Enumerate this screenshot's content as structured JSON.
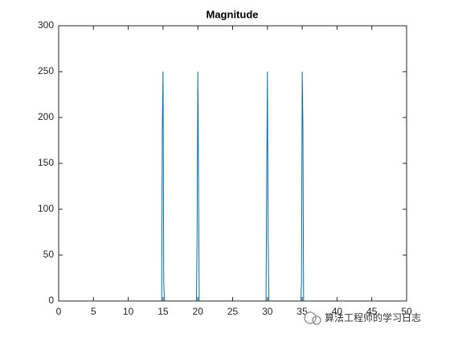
{
  "chart_data": {
    "type": "line",
    "title": "Magnitude",
    "x": [
      0,
      14.8,
      14.9,
      15,
      15.1,
      15.2,
      19.8,
      19.9,
      20,
      20.1,
      20.2,
      29.8,
      29.9,
      30,
      30.1,
      30.2,
      34.8,
      34.9,
      35,
      35.1,
      35.2,
      50
    ],
    "values": [
      0,
      0,
      193,
      250,
      20,
      0,
      0,
      76,
      250,
      135,
      0,
      0,
      135,
      250,
      76,
      0,
      0,
      20,
      250,
      191,
      0,
      0
    ],
    "color": "#0072bd",
    "xlim": [
      0,
      50
    ],
    "xticks": [
      0,
      5,
      10,
      15,
      20,
      25,
      30,
      35,
      40,
      45,
      50
    ],
    "ylim": [
      0,
      300
    ],
    "yticks": [
      0,
      50,
      100,
      150,
      200,
      250,
      300
    ],
    "grid": false,
    "watermark": "算法工程师的学习日志"
  }
}
